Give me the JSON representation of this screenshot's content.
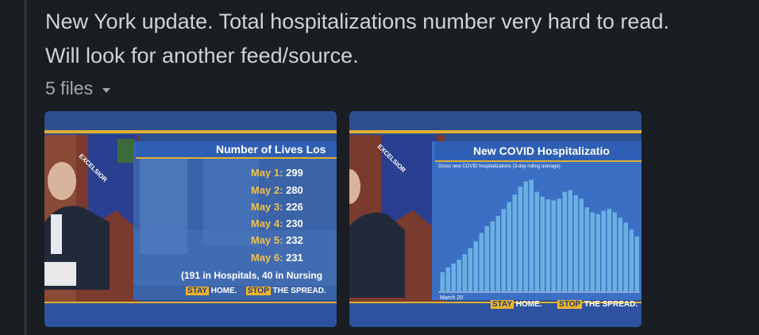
{
  "message": {
    "line1": "New York update. Total hospitalizations number very hard to read.",
    "line2": "Will look for another feed/source."
  },
  "files": {
    "label": "5 files"
  },
  "thumb1": {
    "banner_title": "Number of Lives Los",
    "rows": [
      {
        "date": "May 1:",
        "value": "299"
      },
      {
        "date": "May 2:",
        "value": "280"
      },
      {
        "date": "May 3:",
        "value": "226"
      },
      {
        "date": "May 4:",
        "value": "230"
      },
      {
        "date": "May 5:",
        "value": "232"
      },
      {
        "date": "May 6:",
        "value": "231"
      }
    ],
    "note": "(191 in Hospitals, 40 in Nursing",
    "stay": "STAY",
    "home": "HOME.",
    "stop": "STOP",
    "spread": "THE SPREAD.",
    "seal_text": "EXCELSIOR"
  },
  "thumb2": {
    "banner_title": "New COVID Hospitalizatio",
    "subtitle": "Gross new COVID hospitalizations (3-day rolling average)",
    "start_label": "March 20",
    "stay": "STAY",
    "home": "HOME.",
    "stop": "STOP",
    "spread": "THE SPREAD.",
    "seal_text": "EXCELSIOR"
  },
  "chart_data": {
    "type": "bar",
    "title": "New COVID Hospitalizations",
    "subtitle": "Gross new COVID hospitalizations (3-day rolling average)",
    "xlabel": "March 20",
    "values": [
      560,
      700,
      810,
      920,
      1080,
      1260,
      1460,
      1700,
      1900,
      2040,
      2200,
      2400,
      2600,
      2820,
      3050,
      3200,
      3250,
      2900,
      2760,
      2680,
      2650,
      2700,
      2900,
      2950,
      2800,
      2700,
      2450,
      2300,
      2250,
      2350,
      2400,
      2300,
      2150,
      2000,
      1800,
      1600
    ],
    "ylim": [
      0,
      3400
    ]
  },
  "colors": {
    "background": "#1a1d21",
    "text": "#d1d2d3",
    "muted": "#a7a8aa",
    "banner": "#3a6fc4",
    "gold": "#f0b429",
    "bar": "#6ab0e2"
  }
}
